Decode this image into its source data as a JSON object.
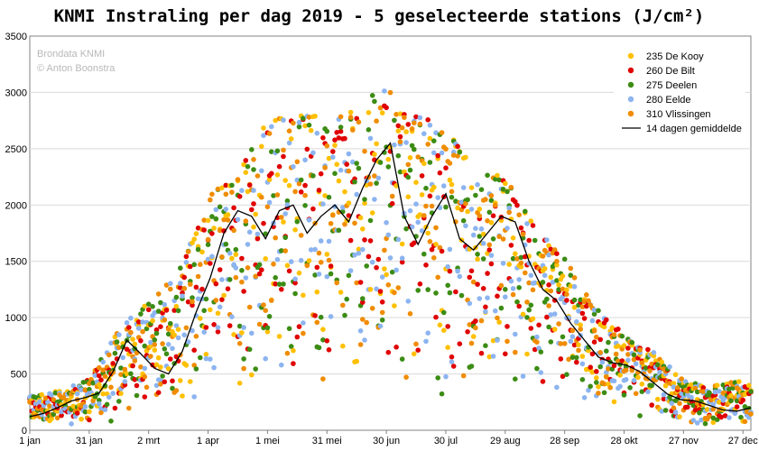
{
  "chart_data": {
    "type": "scatter",
    "title": "KNMI Instraling per dag 2019 - 5 geselecteerde stations (J/cm²)",
    "credit": [
      "Brondata KNMI",
      "© Anton Boonstra"
    ],
    "xlabel": "",
    "ylabel": "",
    "xlim": [
      0,
      364
    ],
    "ylim": [
      0,
      3500
    ],
    "yticks": [
      0,
      500,
      1000,
      1500,
      2000,
      2500,
      3000,
      3500
    ],
    "xticks": [
      {
        "day": 0,
        "label": "1 jan"
      },
      {
        "day": 30,
        "label": "31 jan"
      },
      {
        "day": 60,
        "label": "2 mrt"
      },
      {
        "day": 90,
        "label": "1 apr"
      },
      {
        "day": 120,
        "label": "1 mei"
      },
      {
        "day": 150,
        "label": "31 mei"
      },
      {
        "day": 180,
        "label": "30 jun"
      },
      {
        "day": 210,
        "label": "30 jul"
      },
      {
        "day": 240,
        "label": "29 aug"
      },
      {
        "day": 270,
        "label": "28 sep"
      },
      {
        "day": 300,
        "label": "28 okt"
      },
      {
        "day": 330,
        "label": "27 nov"
      },
      {
        "day": 360,
        "label": "27 dec"
      }
    ],
    "grid": true,
    "legend_position": "top-right",
    "series": [
      {
        "name": "235 De Kooy",
        "color": "#ffc000",
        "kind": "points"
      },
      {
        "name": "260 De Bilt",
        "color": "#e00000",
        "kind": "points"
      },
      {
        "name": "275 Deelen",
        "color": "#3c8c14",
        "kind": "points"
      },
      {
        "name": "280 Eelde",
        "color": "#8cb4f0",
        "kind": "points"
      },
      {
        "name": "310 Vlissingen",
        "color": "#f08c00",
        "kind": "points"
      },
      {
        "name": "14 dagen gemiddelde",
        "color": "#000000",
        "kind": "line"
      }
    ],
    "moving_average": {
      "x": [
        0,
        7,
        14,
        21,
        28,
        35,
        42,
        49,
        56,
        63,
        70,
        77,
        84,
        91,
        98,
        105,
        112,
        119,
        126,
        133,
        140,
        147,
        154,
        161,
        168,
        175,
        182,
        189,
        196,
        203,
        210,
        217,
        224,
        231,
        238,
        245,
        252,
        259,
        266,
        273,
        280,
        287,
        294,
        301,
        308,
        315,
        322,
        329,
        336,
        343,
        350,
        357,
        364
      ],
      "y": [
        120,
        150,
        200,
        260,
        290,
        330,
        520,
        800,
        680,
        550,
        500,
        700,
        1050,
        1350,
        1750,
        1950,
        1900,
        1700,
        1950,
        2000,
        1750,
        1900,
        2000,
        1850,
        2150,
        2400,
        2550,
        1900,
        1650,
        1900,
        2100,
        1700,
        1600,
        1750,
        1900,
        1850,
        1500,
        1250,
        1150,
        950,
        800,
        650,
        600,
        580,
        520,
        420,
        320,
        270,
        260,
        220,
        180,
        170,
        200
      ]
    },
    "scatter_envelope": {
      "note_days": [
        0,
        15,
        30,
        45,
        60,
        75,
        90,
        105,
        120,
        135,
        150,
        165,
        180,
        195,
        210,
        225,
        240,
        255,
        270,
        285,
        300,
        315,
        330,
        345,
        364
      ],
      "upper": [
        300,
        350,
        450,
        900,
        1150,
        1400,
        2100,
        2300,
        2750,
        2800,
        2800,
        2850,
        3100,
        2800,
        2700,
        2300,
        2250,
        1800,
        1550,
        1100,
        850,
        700,
        450,
        400,
        450
      ],
      "lower": [
        30,
        40,
        60,
        80,
        150,
        200,
        250,
        350,
        400,
        450,
        400,
        400,
        500,
        350,
        300,
        350,
        450,
        350,
        250,
        200,
        150,
        100,
        50,
        40,
        40
      ]
    }
  }
}
